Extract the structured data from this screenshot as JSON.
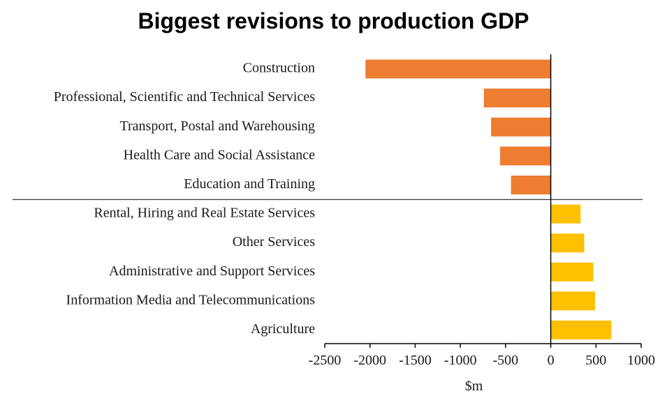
{
  "chart_data": {
    "type": "bar",
    "orientation": "horizontal",
    "title": "Biggest revisions to production GDP",
    "xlabel": "$m",
    "ylabel": "",
    "xlim": [
      -2500,
      1000
    ],
    "xticks": [
      -2500,
      -2000,
      -1500,
      -1000,
      -500,
      0,
      500,
      1000
    ],
    "grid": false,
    "categories": [
      "Construction",
      "Professional, Scientific and Technical Services",
      "Transport, Postal and Warehousing",
      "Health Care and Social Assistance",
      "Education and Training",
      "Rental, Hiring and Real Estate Services",
      "Other Services",
      "Administrative and Support Services",
      "Information Media and Telecommunications",
      "Agriculture"
    ],
    "values": [
      -2050,
      -740,
      -660,
      -560,
      -440,
      330,
      370,
      470,
      490,
      670
    ],
    "colors": {
      "negative": "#ED7D31",
      "positive": "#FFC000"
    }
  }
}
